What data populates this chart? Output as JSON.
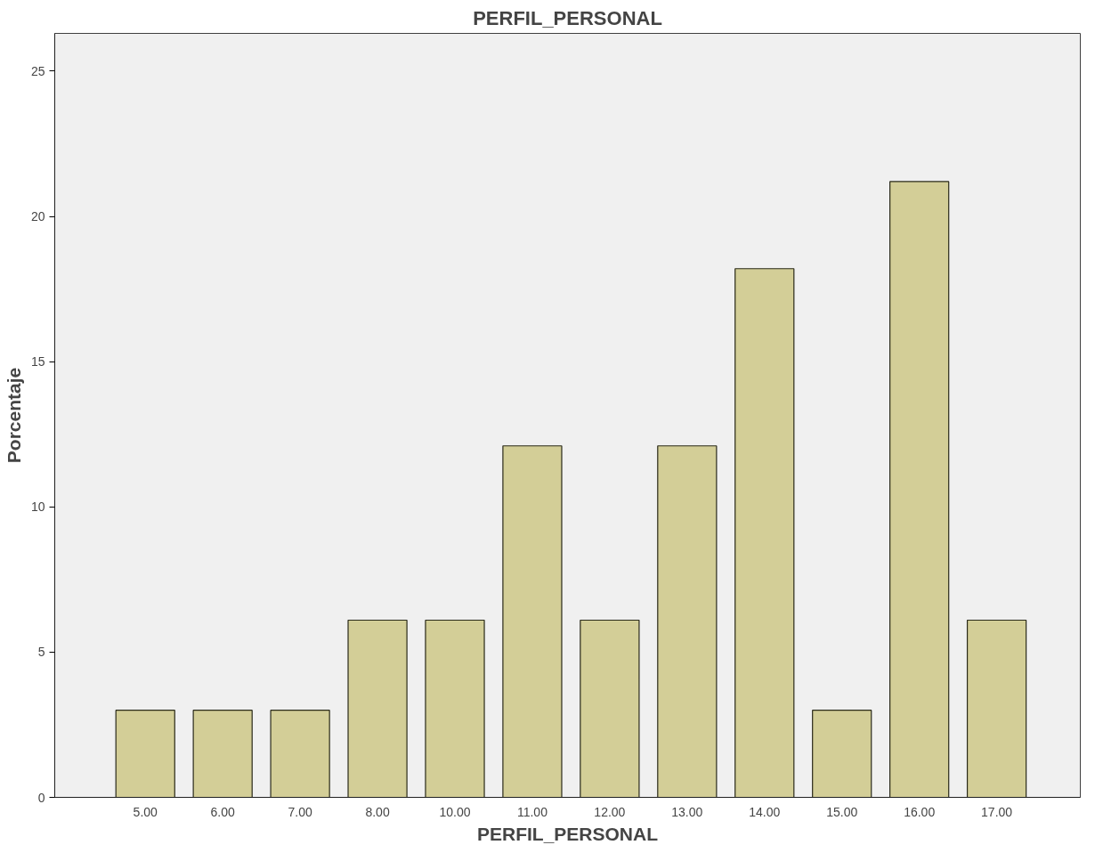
{
  "chart_data": {
    "type": "bar",
    "title": "PERFIL_PERSONAL",
    "xlabel": "PERFIL_PERSONAL",
    "ylabel": "Porcentaje",
    "categories": [
      "5.00",
      "6.00",
      "7.00",
      "8.00",
      "10.00",
      "11.00",
      "12.00",
      "13.00",
      "14.00",
      "15.00",
      "16.00",
      "17.00"
    ],
    "values": [
      3.0,
      3.0,
      3.0,
      6.1,
      6.1,
      12.1,
      6.1,
      12.1,
      18.2,
      3.0,
      21.2,
      6.1
    ],
    "color": "#d3ce97",
    "ylim": [
      0,
      26.3
    ],
    "yticks": [
      0,
      5,
      10,
      15,
      20,
      25
    ],
    "grid": false
  }
}
